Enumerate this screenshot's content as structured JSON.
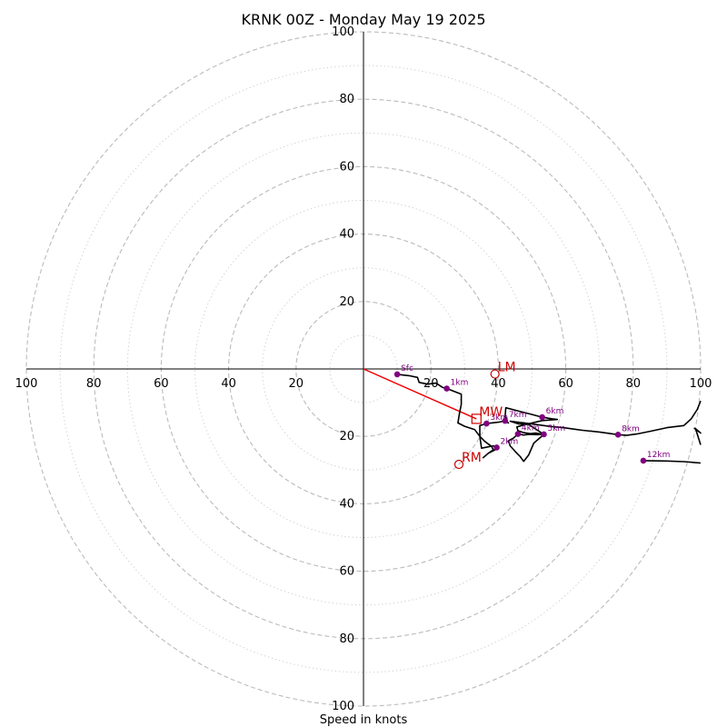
{
  "chart_data": {
    "type": "hodograph",
    "title": "KRNK 00Z - Monday May 19 2025",
    "xlabel": "Speed in knots",
    "grid": true,
    "range": [
      -100,
      100
    ],
    "rings_major": [
      20,
      40,
      60,
      80,
      100
    ],
    "rings_minor": [
      10,
      30,
      50,
      70,
      90
    ],
    "x_ticks": [
      {
        "value": -100,
        "label": "100"
      },
      {
        "value": -80,
        "label": "80"
      },
      {
        "value": -60,
        "label": "60"
      },
      {
        "value": -40,
        "label": "40"
      },
      {
        "value": -20,
        "label": "20"
      },
      {
        "value": 20,
        "label": "20"
      },
      {
        "value": 40,
        "label": "40"
      },
      {
        "value": 60,
        "label": "60"
      },
      {
        "value": 80,
        "label": "80"
      },
      {
        "value": 100,
        "label": "100"
      }
    ],
    "y_ticks": [
      {
        "value": 100,
        "label": "100"
      },
      {
        "value": 80,
        "label": "80"
      },
      {
        "value": 60,
        "label": "60"
      },
      {
        "value": 40,
        "label": "40"
      },
      {
        "value": 20,
        "label": "20"
      },
      {
        "value": -20,
        "label": "20"
      },
      {
        "value": -40,
        "label": "40"
      },
      {
        "value": -60,
        "label": "60"
      },
      {
        "value": -80,
        "label": "80"
      },
      {
        "value": -100,
        "label": "100"
      }
    ],
    "wind_trace": [
      [
        10,
        -1.6
      ],
      [
        13.5,
        -2
      ],
      [
        16,
        -2.5
      ],
      [
        16.5,
        -4
      ],
      [
        19,
        -4.5
      ],
      [
        21.5,
        -4.2
      ],
      [
        23.5,
        -5.5
      ],
      [
        24.7,
        -5.8
      ],
      [
        26.5,
        -6.5
      ],
      [
        29,
        -7.5
      ],
      [
        29,
        -10.5
      ],
      [
        28.5,
        -13
      ],
      [
        28,
        -16
      ],
      [
        30,
        -17
      ],
      [
        33,
        -18
      ],
      [
        34.5,
        -20
      ],
      [
        36,
        -21.5
      ],
      [
        38,
        -23
      ],
      [
        38.5,
        -24
      ],
      [
        37,
        -25
      ],
      [
        35.5,
        -26.3
      ],
      [
        37,
        -25
      ],
      [
        39,
        -24
      ],
      [
        39.5,
        -23.3
      ],
      [
        38.5,
        -22.8
      ],
      [
        35,
        -23.5
      ],
      [
        34.5,
        -20
      ],
      [
        34.5,
        -16.8
      ],
      [
        36.5,
        -16.2
      ],
      [
        40,
        -15.8
      ],
      [
        42,
        -15.4
      ],
      [
        43,
        -16
      ],
      [
        41.5,
        -15.3
      ],
      [
        42.5,
        -14.8
      ],
      [
        42,
        -14.2
      ],
      [
        42.2,
        -11.5
      ],
      [
        46,
        -12.5
      ],
      [
        50,
        -13.5
      ],
      [
        53,
        -14.3
      ],
      [
        56,
        -14.8
      ],
      [
        57.5,
        -15
      ],
      [
        53,
        -15.3
      ],
      [
        48,
        -16.5
      ],
      [
        45.5,
        -17.2
      ],
      [
        45.8,
        -18.3
      ],
      [
        47.5,
        -18.9
      ],
      [
        49.5,
        -19.2
      ],
      [
        51,
        -19
      ],
      [
        53.5,
        -19.4
      ],
      [
        51.5,
        -19.5
      ],
      [
        49,
        -19.4
      ],
      [
        47.5,
        -19.6
      ],
      [
        45.8,
        -19.3
      ],
      [
        44.5,
        -20.5
      ],
      [
        43,
        -21.3
      ],
      [
        43.5,
        -22.8
      ],
      [
        45,
        -24.5
      ],
      [
        46.5,
        -26
      ],
      [
        47.5,
        -27.4
      ],
      [
        49,
        -25.5
      ],
      [
        50.5,
        -22
      ],
      [
        53.5,
        -19.4
      ],
      [
        49,
        -16.5
      ],
      [
        46,
        -16.3
      ],
      [
        43.5,
        -15.5
      ],
      [
        49,
        -16.2
      ],
      [
        55,
        -17
      ],
      [
        60,
        -17.5
      ],
      [
        65,
        -18.2
      ],
      [
        70,
        -18.7
      ],
      [
        75.5,
        -19.5
      ],
      [
        78,
        -19.7
      ],
      [
        81,
        -19.3
      ],
      [
        85,
        -18.5
      ],
      [
        90,
        -17.4
      ],
      [
        95,
        -16.8
      ],
      [
        97.2,
        -14.8
      ],
      [
        99,
        -12
      ],
      [
        100,
        -9.5
      ]
    ],
    "wind_trace_2": [
      [
        83,
        -27.2
      ],
      [
        90,
        -27.3
      ],
      [
        95,
        -27.5
      ],
      [
        100,
        -27.9
      ]
    ],
    "wind_trace_3": [
      [
        98,
        -17.5
      ],
      [
        100,
        -19
      ],
      [
        98.5,
        -17.7
      ],
      [
        100,
        -22.5
      ]
    ],
    "height_markers": [
      {
        "label": "Sfc",
        "u": 10,
        "v": -1.6
      },
      {
        "label": "1km",
        "u": 24.7,
        "v": -5.8
      },
      {
        "label": "2km",
        "u": 39.5,
        "v": -23.3
      },
      {
        "label": "3km",
        "u": 36.5,
        "v": -16.2
      },
      {
        "label": "4km",
        "u": 45.8,
        "v": -19.3
      },
      {
        "label": "5km",
        "u": 53.5,
        "v": -19.4
      },
      {
        "label": "6km",
        "u": 53,
        "v": -14.3
      },
      {
        "label": "7km",
        "u": 42,
        "v": -15.4
      },
      {
        "label": "8km",
        "u": 75.5,
        "v": -19.5
      },
      {
        "label": "12km",
        "u": 83,
        "v": -27.2
      }
    ],
    "storm_motions": [
      {
        "label": "LM",
        "u": 39,
        "v": -1.5,
        "marker": "circle"
      },
      {
        "label": "RM",
        "u": 28.3,
        "v": -28.3,
        "marker": "circle"
      },
      {
        "label": "MW",
        "u": 33.5,
        "v": -14.8,
        "marker": "square"
      }
    ],
    "shear_vector": {
      "from": [
        0,
        0
      ],
      "to": [
        33.5,
        -14.8
      ]
    },
    "colors": {
      "trace": "#000000",
      "marker": "#800080",
      "storm_motion": "#cc0000",
      "shear": "#ee0000",
      "ring_major": "#bbbbbb",
      "ring_minor": "#cccccc"
    }
  }
}
